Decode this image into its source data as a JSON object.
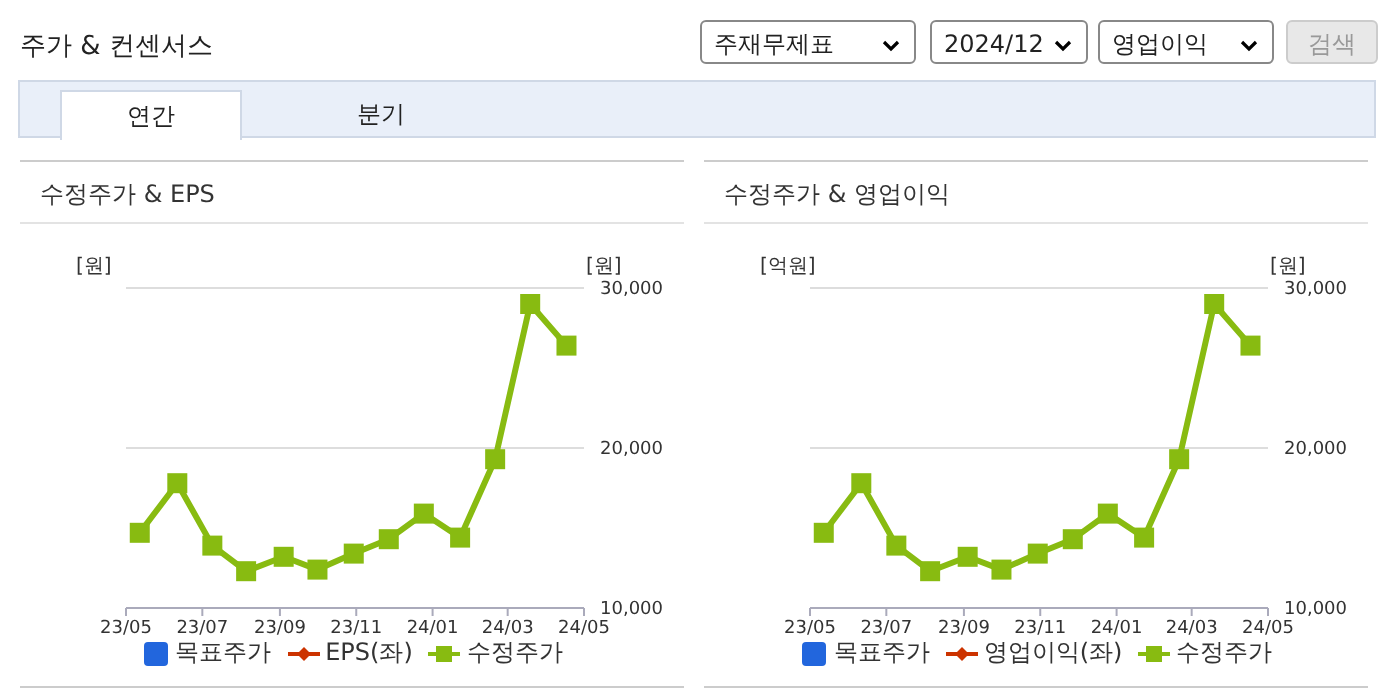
{
  "chart_data": [
    {
      "type": "other",
      "title": "주가 & 컨센서스",
      "annotations": [
        "주재무제표",
        "2024/12",
        "영업이익",
        "검색",
        "연간",
        "분기"
      ]
    },
    {
      "type": "line",
      "title": "수정주가 & EPS",
      "ylabel": "[원]",
      "y2label": "[원]",
      "x": [
        "2023-05-12",
        "2023-06-11",
        "2023-07-09",
        "2023-08-05",
        "2023-09-04",
        "2023-10-01",
        "2023-10-30",
        "2023-11-27",
        "2023-12-25",
        "2024-01-23",
        "2024-02-20",
        "2024-03-19",
        "2024-04-17"
      ],
      "xlim": [
        "2023-05",
        "2024-05"
      ],
      "xticks": [
        {
          "value": "2023-05",
          "label": "23/05"
        },
        {
          "value": "2023-07",
          "label": "23/07"
        },
        {
          "value": "2023-09",
          "label": "23/09"
        },
        {
          "value": "2023-11",
          "label": "23/11"
        },
        {
          "value": "2024-01",
          "label": "24/01"
        },
        {
          "value": "2024-03",
          "label": "24/03"
        },
        {
          "value": "2024-05",
          "label": "24/05"
        }
      ],
      "y2lim": [
        10000,
        30000
      ],
      "y2ticks": [
        {
          "value": 10000,
          "label": "10,000"
        },
        {
          "value": 20000,
          "label": "20,000"
        },
        {
          "value": 30000,
          "label": "30,000"
        }
      ],
      "grid": "y",
      "legend": "bottom",
      "tick_labels": "x",
      "series": [
        {
          "name": "목표주가",
          "type": "bar",
          "color": "#2266dd",
          "marker": "square",
          "values": [
            null,
            null,
            null,
            null,
            null,
            null,
            null,
            null,
            null,
            null,
            null,
            null,
            null
          ]
        },
        {
          "name": "EPS(좌)",
          "type": "line",
          "color": "#cc3300",
          "marker": "diamond",
          "values": [
            null,
            null,
            null,
            null,
            null,
            null,
            null,
            null,
            null,
            null,
            null,
            null,
            null
          ]
        },
        {
          "name": "수정주가",
          "type": "line",
          "axis": "y2",
          "color": "#88bb11",
          "marker": "square",
          "values": [
            14700,
            17800,
            13900,
            12300,
            13200,
            12400,
            13400,
            14300,
            15900,
            14400,
            19300,
            29000,
            26400
          ]
        }
      ]
    },
    {
      "type": "line",
      "title": "수정주가 & 영업이익",
      "ylabel": "[억원]",
      "y2label": "[원]",
      "x": [
        "2023-05-12",
        "2023-06-11",
        "2023-07-09",
        "2023-08-05",
        "2023-09-04",
        "2023-10-01",
        "2023-10-30",
        "2023-11-27",
        "2023-12-25",
        "2024-01-23",
        "2024-02-20",
        "2024-03-19",
        "2024-04-17"
      ],
      "xlim": [
        "2023-05",
        "2024-05"
      ],
      "xticks": [
        {
          "value": "2023-05",
          "label": "23/05"
        },
        {
          "value": "2023-07",
          "label": "23/07"
        },
        {
          "value": "2023-09",
          "label": "23/09"
        },
        {
          "value": "2023-11",
          "label": "23/11"
        },
        {
          "value": "2024-01",
          "label": "24/01"
        },
        {
          "value": "2024-03",
          "label": "24/03"
        },
        {
          "value": "2024-05",
          "label": "24/05"
        }
      ],
      "y2lim": [
        10000,
        30000
      ],
      "y2ticks": [
        {
          "value": 10000,
          "label": "10,000"
        },
        {
          "value": 20000,
          "label": "20,000"
        },
        {
          "value": 30000,
          "label": "30,000"
        }
      ],
      "grid": "y",
      "legend": "bottom",
      "tick_labels": "x",
      "series": [
        {
          "name": "목표주가",
          "type": "bar",
          "color": "#2266dd",
          "marker": "square",
          "values": [
            null,
            null,
            null,
            null,
            null,
            null,
            null,
            null,
            null,
            null,
            null,
            null,
            null
          ]
        },
        {
          "name": "영업이익(좌)",
          "type": "line",
          "color": "#cc3300",
          "marker": "diamond",
          "values": [
            null,
            null,
            null,
            null,
            null,
            null,
            null,
            null,
            null,
            null,
            null,
            null,
            null
          ]
        },
        {
          "name": "수정주가",
          "type": "line",
          "axis": "y2",
          "color": "#88bb11",
          "marker": "square",
          "values": [
            14700,
            17800,
            13900,
            12300,
            13200,
            12400,
            13400,
            14300,
            15900,
            14400,
            19300,
            29000,
            26400
          ]
        }
      ]
    }
  ]
}
